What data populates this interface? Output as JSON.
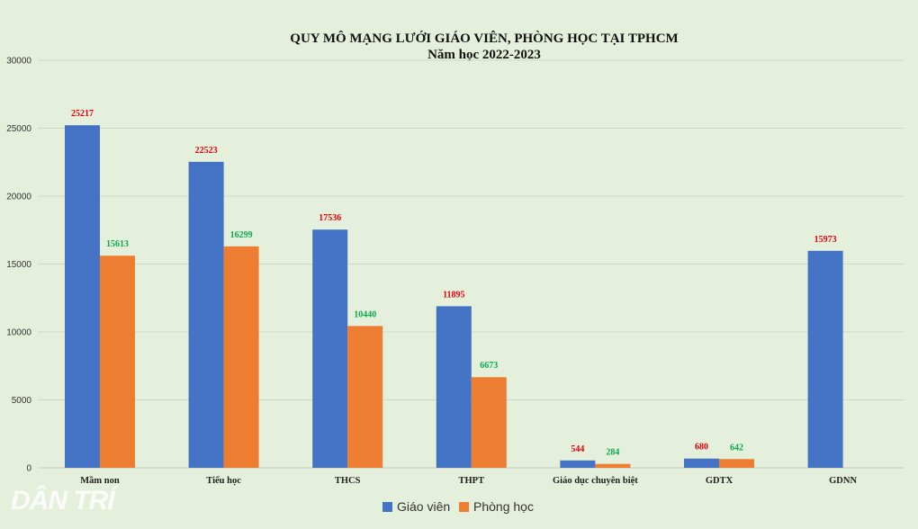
{
  "chart_data": {
    "type": "bar",
    "title": "QUY MÔ MẠNG LƯỚI GIÁO VIÊN, PHÒNG HỌC TẠI TPHCM",
    "subtitle": "Năm học 2022-2023",
    "categories": [
      "Mầm non",
      "Tiểu học",
      "THCS",
      "THPT",
      "Giáo dục chuyên biệt",
      "GDTX",
      "GDNN"
    ],
    "series": [
      {
        "name": "Giáo viên",
        "color": "#4472c4",
        "label_color": "#e0000b",
        "values": [
          25217,
          22523,
          17536,
          11895,
          544,
          680,
          15973
        ]
      },
      {
        "name": "Phòng học",
        "color": "#ed7d31",
        "label_color": "#0aa84f",
        "values": [
          15613,
          16299,
          10440,
          6673,
          284,
          642,
          null
        ]
      }
    ],
    "ylim": [
      0,
      30000
    ],
    "yticks": [
      0,
      5000,
      10000,
      15000,
      20000,
      25000,
      30000
    ],
    "grid": true,
    "legend_position": "bottom"
  },
  "watermark": "DÂN TRÍ"
}
